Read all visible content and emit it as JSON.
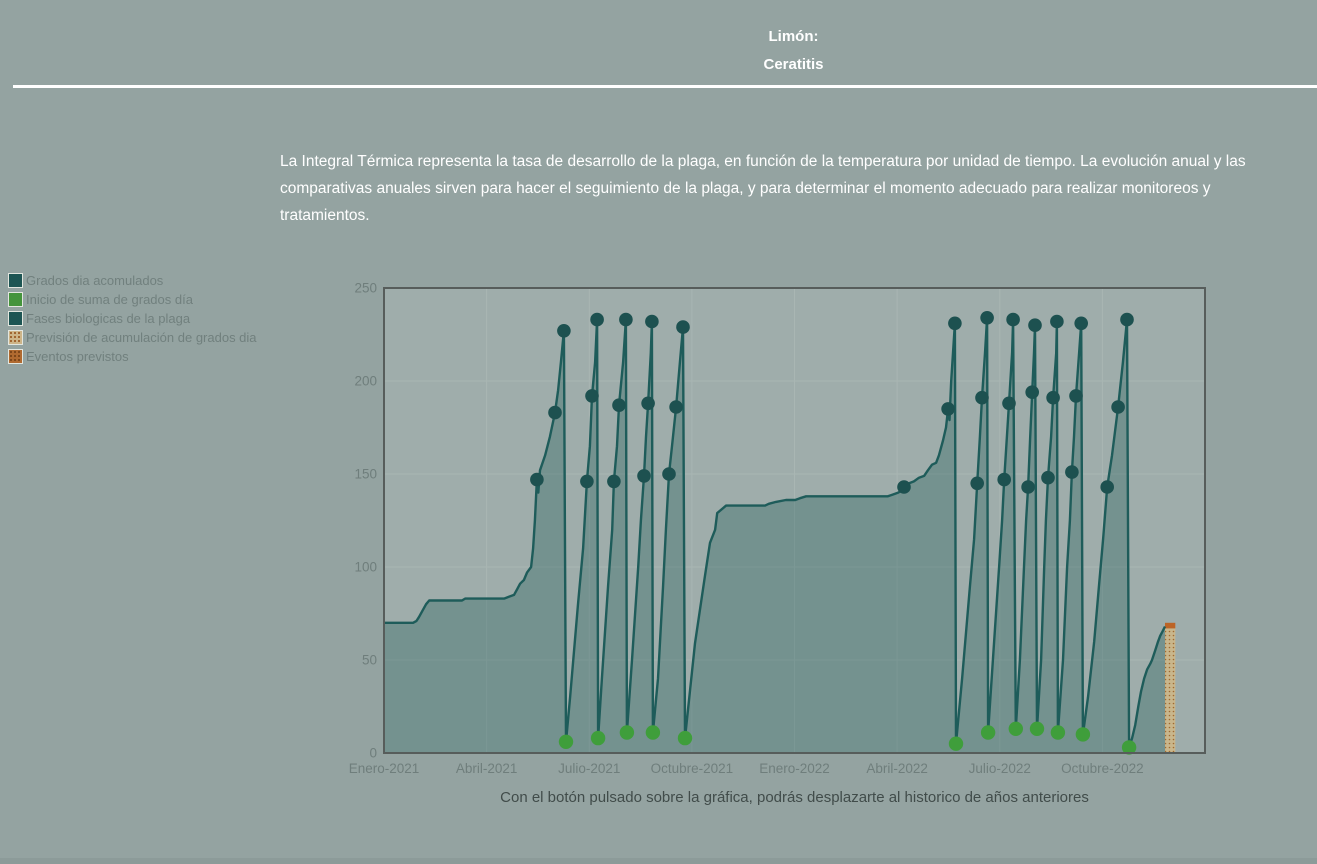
{
  "header": {
    "crop_label": "Limón:",
    "pest_label": "Ceratitis"
  },
  "description": "La Integral Térmica representa la tasa de desarrollo de la plaga, en función de la temperatura por unidad de tiempo. La evolución anual y las comparativas anuales sirven para hacer el seguimiento de la plaga, y para determinar el momento adecuado para realizar monitoreos y tratamientos.",
  "caption": "Con el botón pulsado sobre la gráfica, podrás desplazarte al historico de años anteriores",
  "palette": {
    "page_bg": "#94a3a1",
    "footer_bar": "#8c9b99",
    "title_text": "#ffffff",
    "legend_text": "#71807e",
    "caption_text": "#414c4a"
  },
  "legend": {
    "items": [
      {
        "label": "Grados dia acomulados",
        "color": "#1d5553",
        "pattern": "solid"
      },
      {
        "label": "Inicio de suma de grados día",
        "color": "#44943c",
        "pattern": "solid"
      },
      {
        "label": "Fases biologicas de la plaga",
        "color": "#1d5553",
        "pattern": "solid"
      },
      {
        "label": "Previsión de acumulación de grados dia",
        "color": "#cdb488",
        "pattern": "dotted",
        "dot_color": "#9c5f2a"
      },
      {
        "label": "Eventos previstos",
        "color": "#b06a30",
        "pattern": "dotted",
        "dot_color": "#7a4418"
      }
    ]
  },
  "chart_data": {
    "type": "area",
    "title": "",
    "xlabel": "",
    "ylabel": "",
    "x_unit": "months since Enero-2021",
    "xlim": [
      0,
      24
    ],
    "ylim": [
      0,
      250
    ],
    "yticks": [
      0,
      50,
      100,
      150,
      200,
      250
    ],
    "xticks": [
      {
        "m": 0,
        "label": "Enero-2021"
      },
      {
        "m": 3,
        "label": "Abril-2021"
      },
      {
        "m": 6,
        "label": "Julio-2021"
      },
      {
        "m": 9,
        "label": "Octubre-2021"
      },
      {
        "m": 12,
        "label": "Enero-2022"
      },
      {
        "m": 15,
        "label": "Abril-2022"
      },
      {
        "m": 18,
        "label": "Julio-2022"
      },
      {
        "m": 21,
        "label": "Octubre-2022"
      }
    ],
    "grid": true,
    "legend_position": "outside-left",
    "colors": {
      "plot_bg": "#9fadab",
      "grid": "#a9b6b3",
      "border": "#575d5b",
      "line": "#1e5c5a",
      "area_fill": "rgba(30,90,88,0.33)",
      "phase_dot": "#1d5150",
      "start_dot": "#3f9e3b",
      "prevision_fill": "#c9b68b",
      "prevision_dot": "#a06a30",
      "eventos_fill": "#bc6426",
      "tick_text": "#6f7e7c"
    },
    "series": [
      {
        "name": "Grados dia acomulados",
        "type": "area-line",
        "points": [
          [
            0,
            70
          ],
          [
            0.85,
            70
          ],
          [
            0.95,
            71
          ],
          [
            1.02,
            73
          ],
          [
            1.11,
            76
          ],
          [
            1.23,
            80
          ],
          [
            1.32,
            82
          ],
          [
            2.28,
            82
          ],
          [
            2.37,
            83
          ],
          [
            3.51,
            83
          ],
          [
            3.65,
            84
          ],
          [
            3.8,
            85
          ],
          [
            3.89,
            88
          ],
          [
            3.98,
            91
          ],
          [
            4.09,
            93
          ],
          [
            4.18,
            97
          ],
          [
            4.3,
            100
          ],
          [
            4.36,
            110
          ],
          [
            4.41,
            125
          ],
          [
            4.47,
            147
          ],
          [
            4.51,
            140
          ],
          [
            4.56,
            152
          ],
          [
            4.71,
            160
          ],
          [
            4.85,
            170
          ],
          [
            5,
            183
          ],
          [
            5.09,
            195
          ],
          [
            5.17,
            210
          ],
          [
            5.26,
            227
          ],
          [
            5.32,
            6
          ],
          [
            5.44,
            30
          ],
          [
            5.67,
            80
          ],
          [
            5.82,
            110
          ],
          [
            5.93,
            146
          ],
          [
            6.02,
            165
          ],
          [
            6.08,
            192
          ],
          [
            6.17,
            210
          ],
          [
            6.23,
            233
          ],
          [
            6.26,
            8
          ],
          [
            6.37,
            40
          ],
          [
            6.55,
            90
          ],
          [
            6.67,
            120
          ],
          [
            6.72,
            146
          ],
          [
            6.81,
            165
          ],
          [
            6.87,
            187
          ],
          [
            6.99,
            210
          ],
          [
            7.07,
            233
          ],
          [
            7.1,
            11
          ],
          [
            7.25,
            50
          ],
          [
            7.43,
            100
          ],
          [
            7.51,
            125
          ],
          [
            7.6,
            149
          ],
          [
            7.66,
            170
          ],
          [
            7.72,
            188
          ],
          [
            7.8,
            215
          ],
          [
            7.83,
            232
          ],
          [
            7.86,
            11
          ],
          [
            8.01,
            40
          ],
          [
            8.16,
            90
          ],
          [
            8.24,
            120
          ],
          [
            8.33,
            150
          ],
          [
            8.42,
            165
          ],
          [
            8.54,
            186
          ],
          [
            8.65,
            210
          ],
          [
            8.74,
            229
          ],
          [
            8.8,
            8
          ],
          [
            9.09,
            59
          ],
          [
            9.38,
            95
          ],
          [
            9.53,
            113
          ],
          [
            9.68,
            120
          ],
          [
            9.74,
            129
          ],
          [
            10,
            133
          ],
          [
            11.14,
            133
          ],
          [
            11.25,
            134
          ],
          [
            11.46,
            135
          ],
          [
            11.75,
            136
          ],
          [
            12.02,
            136
          ],
          [
            12.16,
            137
          ],
          [
            12.34,
            138
          ],
          [
            14.73,
            138
          ],
          [
            14.88,
            139
          ],
          [
            15.03,
            140
          ],
          [
            15.14,
            141
          ],
          [
            15.2,
            143
          ],
          [
            15.35,
            145
          ],
          [
            15.49,
            146
          ],
          [
            15.64,
            148
          ],
          [
            15.79,
            149
          ],
          [
            15.9,
            152
          ],
          [
            16.02,
            155
          ],
          [
            16.14,
            156
          ],
          [
            16.22,
            160
          ],
          [
            16.34,
            168
          ],
          [
            16.43,
            175
          ],
          [
            16.49,
            185
          ],
          [
            16.53,
            179
          ],
          [
            16.58,
            200
          ],
          [
            16.69,
            231
          ],
          [
            16.72,
            5
          ],
          [
            16.9,
            40
          ],
          [
            17.13,
            90
          ],
          [
            17.25,
            115
          ],
          [
            17.34,
            145
          ],
          [
            17.42,
            170
          ],
          [
            17.48,
            191
          ],
          [
            17.57,
            215
          ],
          [
            17.63,
            234
          ],
          [
            17.66,
            11
          ],
          [
            17.8,
            50
          ],
          [
            17.98,
            100
          ],
          [
            18.07,
            125
          ],
          [
            18.13,
            147
          ],
          [
            18.21,
            170
          ],
          [
            18.27,
            188
          ],
          [
            18.36,
            215
          ],
          [
            18.39,
            233
          ],
          [
            18.47,
            13
          ],
          [
            18.59,
            50
          ],
          [
            18.71,
            100
          ],
          [
            18.77,
            125
          ],
          [
            18.83,
            143
          ],
          [
            18.89,
            170
          ],
          [
            18.95,
            194
          ],
          [
            19,
            215
          ],
          [
            19.03,
            230
          ],
          [
            19.09,
            13
          ],
          [
            19.21,
            50
          ],
          [
            19.3,
            100
          ],
          [
            19.35,
            125
          ],
          [
            19.41,
            148
          ],
          [
            19.5,
            170
          ],
          [
            19.56,
            191
          ],
          [
            19.65,
            215
          ],
          [
            19.67,
            232
          ],
          [
            19.7,
            11
          ],
          [
            19.85,
            50
          ],
          [
            19.97,
            100
          ],
          [
            20.05,
            125
          ],
          [
            20.11,
            151
          ],
          [
            20.17,
            170
          ],
          [
            20.23,
            192
          ],
          [
            20.32,
            215
          ],
          [
            20.38,
            231
          ],
          [
            20.43,
            10
          ],
          [
            20.58,
            30
          ],
          [
            20.76,
            60
          ],
          [
            20.9,
            90
          ],
          [
            21.02,
            115
          ],
          [
            21.14,
            143
          ],
          [
            21.28,
            160
          ],
          [
            21.46,
            186
          ],
          [
            21.6,
            210
          ],
          [
            21.72,
            233
          ],
          [
            21.78,
            3
          ],
          [
            21.87,
            8
          ],
          [
            21.96,
            15
          ],
          [
            22.05,
            25
          ],
          [
            22.13,
            33
          ],
          [
            22.22,
            40
          ],
          [
            22.31,
            45
          ],
          [
            22.4,
            48
          ],
          [
            22.45,
            50
          ],
          [
            22.54,
            55
          ],
          [
            22.63,
            60
          ],
          [
            22.69,
            63
          ],
          [
            22.75,
            65
          ],
          [
            22.83,
            68
          ]
        ]
      },
      {
        "name": "Fases biologicas de la plaga",
        "type": "scatter",
        "points": [
          [
            4.47,
            147
          ],
          [
            5,
            183
          ],
          [
            5.26,
            227
          ],
          [
            5.93,
            146
          ],
          [
            6.08,
            192
          ],
          [
            6.23,
            233
          ],
          [
            6.72,
            146
          ],
          [
            6.87,
            187
          ],
          [
            7.07,
            233
          ],
          [
            7.6,
            149
          ],
          [
            7.72,
            188
          ],
          [
            7.83,
            232
          ],
          [
            8.33,
            150
          ],
          [
            8.54,
            186
          ],
          [
            8.74,
            229
          ],
          [
            15.2,
            143
          ],
          [
            16.49,
            185
          ],
          [
            16.69,
            231
          ],
          [
            17.34,
            145
          ],
          [
            17.48,
            191
          ],
          [
            17.63,
            234
          ],
          [
            18.13,
            147
          ],
          [
            18.27,
            188
          ],
          [
            18.39,
            233
          ],
          [
            18.83,
            143
          ],
          [
            18.95,
            194
          ],
          [
            19.03,
            230
          ],
          [
            19.41,
            148
          ],
          [
            19.56,
            191
          ],
          [
            19.67,
            232
          ],
          [
            20.11,
            151
          ],
          [
            20.23,
            192
          ],
          [
            20.38,
            231
          ],
          [
            21.14,
            143
          ],
          [
            21.46,
            186
          ],
          [
            21.72,
            233
          ]
        ]
      },
      {
        "name": "Inicio de suma de grados día",
        "type": "scatter",
        "points": [
          [
            5.32,
            6
          ],
          [
            6.26,
            8
          ],
          [
            7.1,
            11
          ],
          [
            7.86,
            11
          ],
          [
            8.8,
            8
          ],
          [
            16.72,
            5
          ],
          [
            17.66,
            11
          ],
          [
            18.47,
            13
          ],
          [
            19.09,
            13
          ],
          [
            19.7,
            11
          ],
          [
            20.43,
            10
          ],
          [
            21.78,
            3
          ]
        ]
      },
      {
        "name": "Previsión de acumulación de grados dia",
        "type": "bar",
        "x0": 22.83,
        "x1": 23.13,
        "y0": 0,
        "y1": 67
      },
      {
        "name": "Eventos previstos",
        "type": "bar",
        "x0": 22.83,
        "x1": 23.13,
        "y0": 67,
        "y1": 70
      }
    ]
  }
}
